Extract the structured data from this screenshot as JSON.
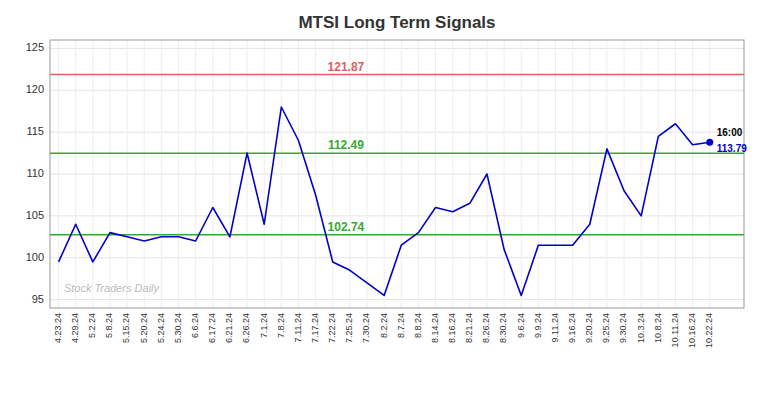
{
  "chart_data": {
    "type": "line",
    "title": "MTSI Long Term Signals",
    "categories": [
      "4.23.24",
      "4.29.24",
      "5.2.24",
      "5.8.24",
      "5.15.24",
      "5.20.24",
      "5.24.24",
      "5.30.24",
      "6.6.24",
      "6.17.24",
      "6.21.24",
      "6.26.24",
      "7.1.24",
      "7.8.24",
      "7.11.24",
      "7.17.24",
      "7.22.24",
      "7.25.24",
      "7.30.24",
      "8.2.24",
      "8.7.24",
      "8.8.24",
      "8.14.24",
      "8.16.24",
      "8.21.24",
      "8.26.24",
      "8.30.24",
      "9.6.24",
      "9.9.24",
      "9.11.24",
      "9.16.24",
      "9.20.24",
      "9.25.24",
      "9.30.24",
      "10.3.24",
      "10.8.24",
      "10.11.24",
      "10.16.24",
      "10.22.24"
    ],
    "values": [
      99.5,
      104.0,
      99.5,
      103.0,
      102.5,
      102.0,
      102.5,
      102.5,
      102.0,
      106.0,
      102.5,
      112.5,
      104.0,
      118.0,
      114.0,
      107.5,
      99.5,
      98.5,
      97.0,
      95.5,
      101.5,
      103.0,
      106.0,
      105.5,
      106.5,
      110.0,
      101.0,
      95.5,
      101.5,
      101.5,
      101.5,
      104.0,
      113.0,
      108.0,
      105.0,
      114.5,
      116.0,
      113.5,
      113.79
    ],
    "color": "#0000cc",
    "hlines": [
      {
        "value": 121.87,
        "color": "#e06060"
      },
      {
        "value": 112.49,
        "color": "#33aa33"
      },
      {
        "value": 102.74,
        "color": "#33aa33"
      }
    ],
    "end_annotation": {
      "time": "16:00",
      "value": 113.79
    },
    "watermark": "Stock Traders Daily",
    "ylim": [
      94,
      126
    ],
    "yticks": [
      95,
      100,
      105,
      110,
      115,
      120,
      125
    ],
    "grid": true
  }
}
